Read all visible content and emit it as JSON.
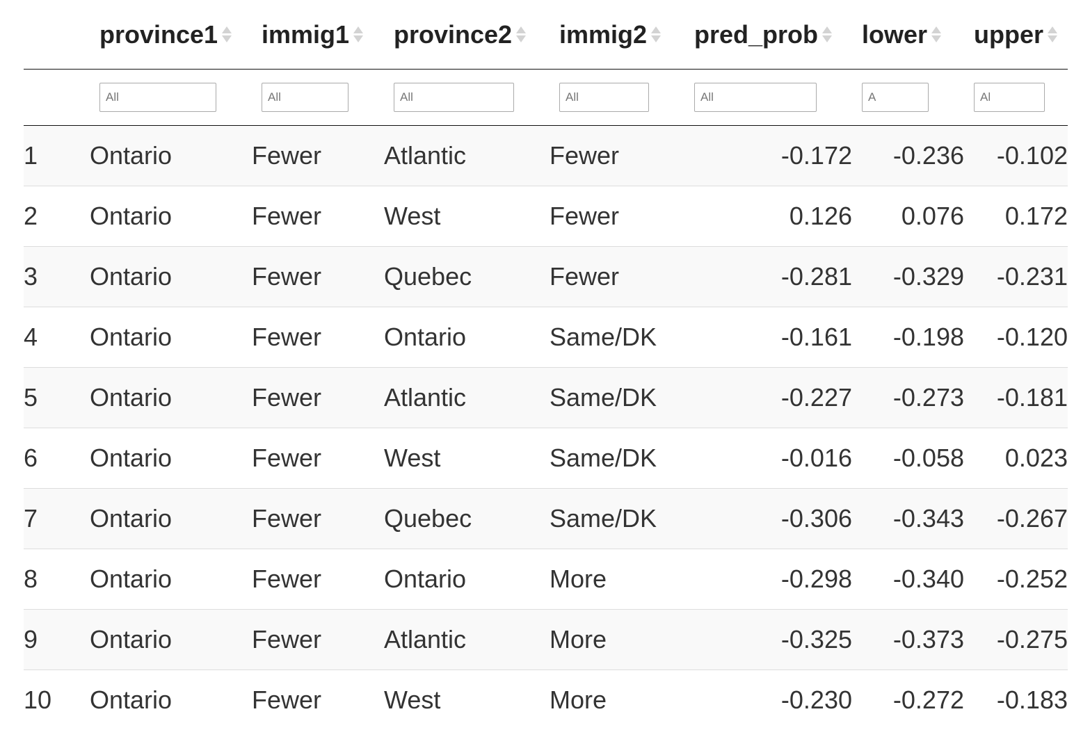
{
  "columns": [
    {
      "key": "index",
      "label": ""
    },
    {
      "key": "province1",
      "label": "province1"
    },
    {
      "key": "immig1",
      "label": "immig1"
    },
    {
      "key": "province2",
      "label": "province2"
    },
    {
      "key": "immig2",
      "label": "immig2"
    },
    {
      "key": "pred_prob",
      "label": "pred_prob"
    },
    {
      "key": "lower",
      "label": "lower"
    },
    {
      "key": "upper",
      "label": "upper"
    }
  ],
  "filters": {
    "province1": "All",
    "immig1": "All",
    "province2": "All",
    "immig2": "All",
    "pred_prob": "All",
    "lower": "A",
    "upper": "Al"
  },
  "rows": [
    {
      "index": "1",
      "province1": "Ontario",
      "immig1": "Fewer",
      "province2": "Atlantic",
      "immig2": "Fewer",
      "pred_prob": "-0.172",
      "lower": "-0.236",
      "upper": "-0.102"
    },
    {
      "index": "2",
      "province1": "Ontario",
      "immig1": "Fewer",
      "province2": "West",
      "immig2": "Fewer",
      "pred_prob": "0.126",
      "lower": "0.076",
      "upper": "0.172"
    },
    {
      "index": "3",
      "province1": "Ontario",
      "immig1": "Fewer",
      "province2": "Quebec",
      "immig2": "Fewer",
      "pred_prob": "-0.281",
      "lower": "-0.329",
      "upper": "-0.231"
    },
    {
      "index": "4",
      "province1": "Ontario",
      "immig1": "Fewer",
      "province2": "Ontario",
      "immig2": "Same/DK",
      "pred_prob": "-0.161",
      "lower": "-0.198",
      "upper": "-0.120"
    },
    {
      "index": "5",
      "province1": "Ontario",
      "immig1": "Fewer",
      "province2": "Atlantic",
      "immig2": "Same/DK",
      "pred_prob": "-0.227",
      "lower": "-0.273",
      "upper": "-0.181"
    },
    {
      "index": "6",
      "province1": "Ontario",
      "immig1": "Fewer",
      "province2": "West",
      "immig2": "Same/DK",
      "pred_prob": "-0.016",
      "lower": "-0.058",
      "upper": "0.023"
    },
    {
      "index": "7",
      "province1": "Ontario",
      "immig1": "Fewer",
      "province2": "Quebec",
      "immig2": "Same/DK",
      "pred_prob": "-0.306",
      "lower": "-0.343",
      "upper": "-0.267"
    },
    {
      "index": "8",
      "province1": "Ontario",
      "immig1": "Fewer",
      "province2": "Ontario",
      "immig2": "More",
      "pred_prob": "-0.298",
      "lower": "-0.340",
      "upper": "-0.252"
    },
    {
      "index": "9",
      "province1": "Ontario",
      "immig1": "Fewer",
      "province2": "Atlantic",
      "immig2": "More",
      "pred_prob": "-0.325",
      "lower": "-0.373",
      "upper": "-0.275"
    },
    {
      "index": "10",
      "province1": "Ontario",
      "immig1": "Fewer",
      "province2": "West",
      "immig2": "More",
      "pred_prob": "-0.230",
      "lower": "-0.272",
      "upper": "-0.183"
    }
  ],
  "colors": {
    "stripe": "#f9f9f9",
    "border": "#111111",
    "row_divider": "#dddddd",
    "sort_icon": "#d3d3d3"
  }
}
